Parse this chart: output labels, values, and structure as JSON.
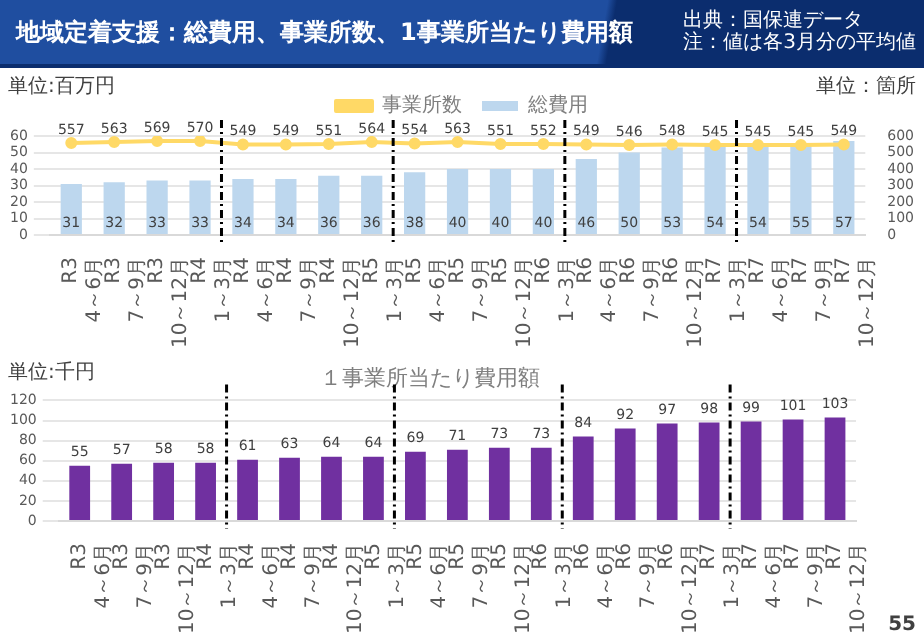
{
  "chart_data": [
    {
      "type": "bar",
      "title": "地域定着支援：総費用、事業所数、1事業所当たり費用額",
      "annotations": [
        "出典：国保連データ",
        "注：値は各3月分の平均値"
      ],
      "ylabel": "単位:百万円",
      "y2label": "単位：箇所",
      "categories": [
        "R3\n4～6月",
        "R3\n7～9月",
        "R3\n10～12月",
        "R4\n1～3月",
        "R4\n4～6月",
        "R4\n7～9月",
        "R4\n10～12月",
        "R5\n1～3月",
        "R5\n4～6月",
        "R5\n7～9月",
        "R5\n10～12月",
        "R6\n1～3月",
        "R6\n4～6月",
        "R6\n7～9月",
        "R6\n10～12月",
        "R7\n1～3月",
        "R7\n4～6月",
        "R7\n7～9月",
        "R7\n10～12月"
      ],
      "series": [
        {
          "name": "総費用",
          "type": "bar",
          "color": "#bdd7ee",
          "values": [
            31,
            32,
            33,
            33,
            34,
            34,
            36,
            36,
            38,
            40,
            40,
            40,
            46,
            50,
            53,
            54,
            54,
            55,
            57
          ]
        },
        {
          "name": "事業所数",
          "type": "line",
          "axis": "y2",
          "color": "#ffd966",
          "values": [
            557,
            563,
            569,
            570,
            549,
            549,
            551,
            564,
            554,
            563,
            551,
            552,
            549,
            546,
            548,
            545,
            545,
            545,
            549
          ]
        }
      ],
      "ylim": [
        0,
        60
      ],
      "yticks": [
        0,
        10,
        20,
        30,
        40,
        50,
        60
      ],
      "y2lim": [
        0,
        600
      ],
      "y2ticks": [
        0,
        100,
        200,
        300,
        400,
        500,
        600
      ],
      "grid": "y",
      "legend": "top",
      "marker": "circle",
      "data_labels": true
    },
    {
      "type": "bar",
      "title": "１事業所当たり費用額",
      "ylabel": "単位:千円",
      "annotations": [
        "55"
      ],
      "categories": [
        "R3\n4～6月",
        "R3\n7～9月",
        "R3\n10～12月",
        "R4\n1～3月",
        "R4\n4～6月",
        "R4\n7～9月",
        "R4\n10～12月",
        "R5\n1～3月",
        "R5\n4～6月",
        "R5\n7～9月",
        "R5\n10～12月",
        "R6\n1～3月",
        "R6\n4～6月",
        "R6\n7～9月",
        "R6\n10～12月",
        "R7\n1～3月",
        "R7\n4～6月",
        "R7\n7～9月",
        "R7\n10～12月"
      ],
      "values": [
        55,
        57,
        58,
        58,
        61,
        63,
        64,
        64,
        69,
        71,
        73,
        73,
        84,
        92,
        97,
        98,
        99,
        101,
        103
      ],
      "color": "#7030a0",
      "ylim": [
        0,
        120
      ],
      "yticks": [
        0,
        20,
        40,
        60,
        80,
        100,
        120
      ],
      "grid": "y",
      "data_labels": true
    }
  ]
}
